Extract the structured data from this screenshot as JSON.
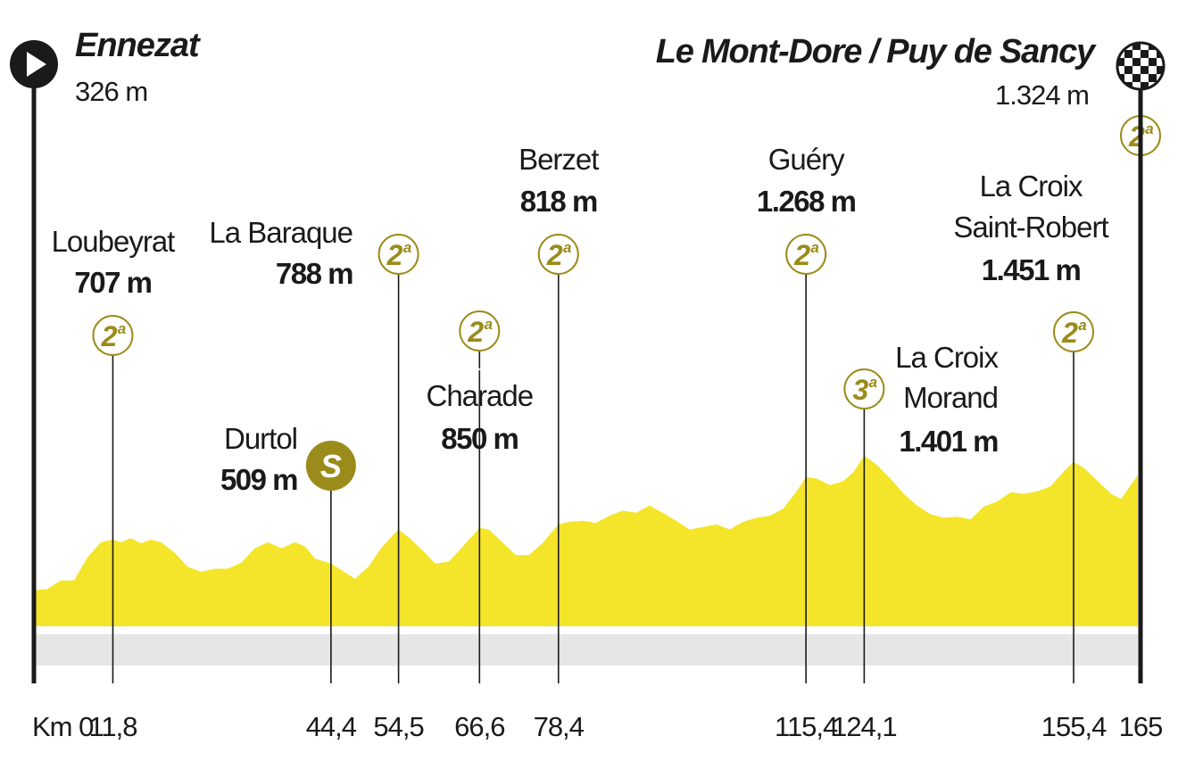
{
  "start": {
    "name": "Ennezat",
    "alt": "326 m"
  },
  "finish": {
    "name": "Le Mont-Dore / Puy de Sancy",
    "alt": "1.324 m"
  },
  "km_unit": "Km",
  "km_markers": [
    {
      "km": "0",
      "v": 0
    },
    {
      "km": "11,8",
      "v": 11.8
    },
    {
      "km": "44,4",
      "v": 44.4
    },
    {
      "km": "54,5",
      "v": 54.5
    },
    {
      "km": "66,6",
      "v": 66.6
    },
    {
      "km": "78,4",
      "v": 78.4
    },
    {
      "km": "115,4",
      "v": 115.4
    },
    {
      "km": "124,1",
      "v": 124.1
    },
    {
      "km": "155,4",
      "v": 155.4
    },
    {
      "km": "165",
      "v": 165
    }
  ],
  "climbs": [
    {
      "id": "loubeyrat",
      "km": 11.8,
      "lines": [
        "Loubeyrat"
      ],
      "alt": "707 m",
      "cat": "2",
      "sup": "a"
    },
    {
      "id": "la-baraque",
      "km": 54.5,
      "lines": [
        "La Baraque"
      ],
      "alt": "788 m",
      "cat": "2",
      "sup": "a"
    },
    {
      "id": "charade",
      "km": 66.6,
      "lines": [
        "Charade"
      ],
      "alt": "850 m",
      "cat": "2",
      "sup": "a"
    },
    {
      "id": "berzet",
      "km": 78.4,
      "lines": [
        "Berzet"
      ],
      "alt": "818 m",
      "cat": "2",
      "sup": "a"
    },
    {
      "id": "guery",
      "km": 115.4,
      "lines": [
        "Guéry"
      ],
      "alt": "1.268 m",
      "cat": "2",
      "sup": "a"
    },
    {
      "id": "croix-morand",
      "km": 124.1,
      "lines": [
        "La Croix",
        "Morand"
      ],
      "alt": "1.401 m",
      "cat": "3",
      "sup": "a"
    },
    {
      "id": "croix-robert",
      "km": 155.4,
      "lines": [
        "La Croix",
        "Saint-Robert"
      ],
      "alt": "1.451 m",
      "cat": "2",
      "sup": "a"
    },
    {
      "id": "finish",
      "km": 165,
      "lines": [],
      "alt": "",
      "cat": "2",
      "sup": "a"
    }
  ],
  "sprint": {
    "km": 44.4,
    "name": "Durtol",
    "alt": "509 m",
    "badge": "S"
  },
  "colors": {
    "profile": "#f4e52a",
    "badge": "#9b8b1a",
    "badge_text": "#ffffff",
    "ground": "#e6e6e6",
    "ink": "#1a1a1a"
  },
  "profile": [
    [
      0,
      326
    ],
    [
      2,
      328
    ],
    [
      4,
      345
    ],
    [
      6,
      345
    ],
    [
      8,
      390
    ],
    [
      10,
      420
    ],
    [
      11.8,
      425
    ],
    [
      13,
      420
    ],
    [
      14.5,
      428
    ],
    [
      16,
      418
    ],
    [
      17.5,
      425
    ],
    [
      19,
      420
    ],
    [
      21,
      400
    ],
    [
      23,
      372
    ],
    [
      25,
      362
    ],
    [
      27,
      368
    ],
    [
      29,
      368
    ],
    [
      31,
      380
    ],
    [
      33,
      408
    ],
    [
      35,
      420
    ],
    [
      37,
      408
    ],
    [
      39,
      420
    ],
    [
      40.5,
      412
    ],
    [
      42,
      388
    ],
    [
      43.5,
      382
    ],
    [
      44.4,
      378
    ],
    [
      46,
      365
    ],
    [
      48,
      348
    ],
    [
      50,
      372
    ],
    [
      52,
      410
    ],
    [
      54.5,
      445
    ],
    [
      56,
      430
    ],
    [
      58,
      405
    ],
    [
      60,
      378
    ],
    [
      62,
      382
    ],
    [
      64,
      410
    ],
    [
      66.6,
      448
    ],
    [
      68,
      445
    ],
    [
      70,
      420
    ],
    [
      72,
      395
    ],
    [
      74,
      395
    ],
    [
      76,
      418
    ],
    [
      78.4,
      455
    ],
    [
      80,
      460
    ],
    [
      82,
      462
    ],
    [
      84,
      458
    ],
    [
      86,
      472
    ],
    [
      88,
      482
    ],
    [
      90,
      478
    ],
    [
      92,
      492
    ],
    [
      94,
      478
    ],
    [
      96,
      462
    ],
    [
      98,
      445
    ],
    [
      100,
      450
    ],
    [
      102,
      455
    ],
    [
      104,
      445
    ],
    [
      106,
      460
    ],
    [
      108,
      468
    ],
    [
      110,
      472
    ],
    [
      112,
      486
    ],
    [
      114,
      520
    ],
    [
      115.4,
      548
    ],
    [
      117,
      545
    ],
    [
      119,
      532
    ],
    [
      121,
      540
    ],
    [
      122.5,
      558
    ],
    [
      124.1,
      590
    ],
    [
      126,
      572
    ],
    [
      128,
      545
    ],
    [
      130,
      515
    ],
    [
      132,
      492
    ],
    [
      134,
      475
    ],
    [
      136,
      468
    ],
    [
      138,
      470
    ],
    [
      140,
      465
    ],
    [
      142,
      490
    ],
    [
      144,
      500
    ],
    [
      146,
      518
    ],
    [
      148,
      515
    ],
    [
      150,
      520
    ],
    [
      152,
      530
    ],
    [
      154,
      560
    ],
    [
      155.4,
      578
    ],
    [
      157,
      565
    ],
    [
      159,
      540
    ],
    [
      161,
      515
    ],
    [
      162.5,
      505
    ],
    [
      165,
      552
    ]
  ]
}
